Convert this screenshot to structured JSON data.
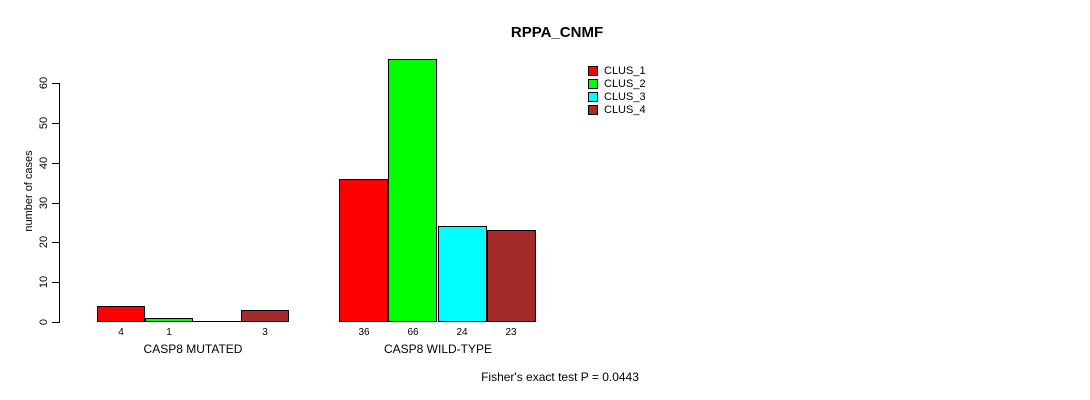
{
  "title": "RPPA_CNMF",
  "annotation": "Fisher's exact test P = 0.0443",
  "colors": {
    "clus1": "#FF0000",
    "clus2": "#00FF00",
    "clus3": "#00FFFF",
    "clus4": "#A52A2A",
    "axis": "#000000",
    "background": "#FFFFFF"
  },
  "chart_data": {
    "type": "bar",
    "title": "RPPA_CNMF",
    "xlabel": "",
    "ylabel": "number of cases",
    "ylim": [
      0,
      66
    ],
    "yticks": [
      0,
      10,
      20,
      30,
      40,
      50,
      60
    ],
    "ytick_labels": [
      "0",
      "10",
      "20",
      "30",
      "40",
      "50",
      "60"
    ],
    "grid": false,
    "legend_position": "top-right",
    "categories": [
      "CASP8 MUTATED",
      "CASP8 WILD-TYPE"
    ],
    "series": [
      {
        "name": "CLUS_1",
        "color": "#FF0000",
        "values": [
          4,
          36
        ]
      },
      {
        "name": "CLUS_2",
        "color": "#00FF00",
        "values": [
          1,
          66
        ]
      },
      {
        "name": "CLUS_3",
        "color": "#00FFFF",
        "values": [
          0,
          24
        ]
      },
      {
        "name": "CLUS_4",
        "color": "#A52A2A",
        "values": [
          3,
          23
        ]
      }
    ],
    "bar_value_labels": [
      [
        "4",
        "1",
        "",
        "3"
      ],
      [
        "36",
        "66",
        "24",
        "23"
      ]
    ],
    "annotation": "Fisher's exact test P = 0.0443"
  }
}
